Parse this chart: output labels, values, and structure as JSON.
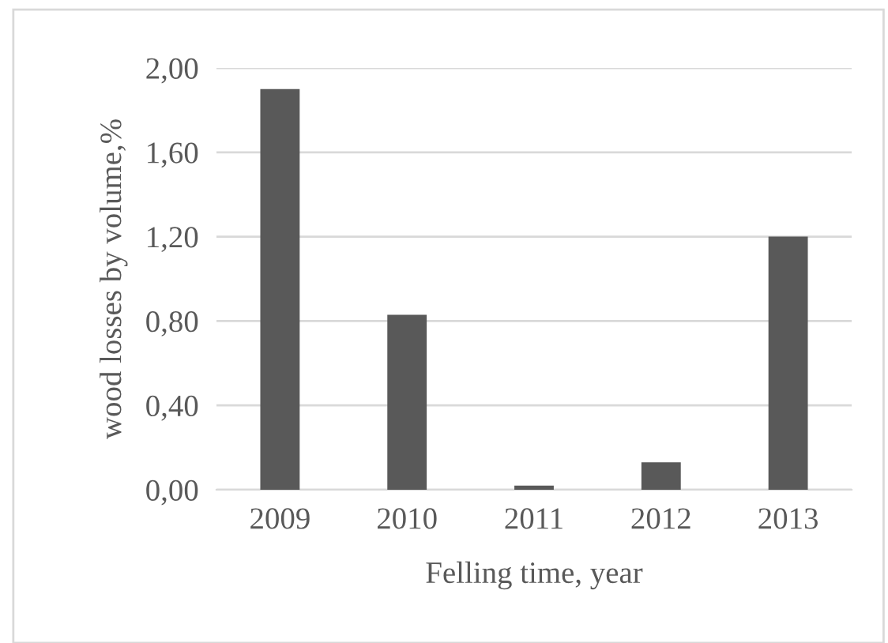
{
  "chart_data": {
    "type": "bar",
    "xlabel": "Felling time, year",
    "ylabel": "wood losses by volume,%",
    "categories": [
      "2009",
      "2010",
      "2011",
      "2012",
      "2013"
    ],
    "values": [
      1.9,
      0.83,
      0.02,
      0.13,
      1.2
    ],
    "color": "#595959",
    "ylim": [
      0,
      2
    ],
    "yticks": [
      {
        "value": 0,
        "label": "0,00"
      },
      {
        "value": 0.4,
        "label": "0,40"
      },
      {
        "value": 0.8,
        "label": "0,80"
      },
      {
        "value": 1.2,
        "label": "1,20"
      },
      {
        "value": 1.6,
        "label": "1,60"
      },
      {
        "value": 2,
        "label": "2,00"
      }
    ],
    "grid": "y"
  }
}
